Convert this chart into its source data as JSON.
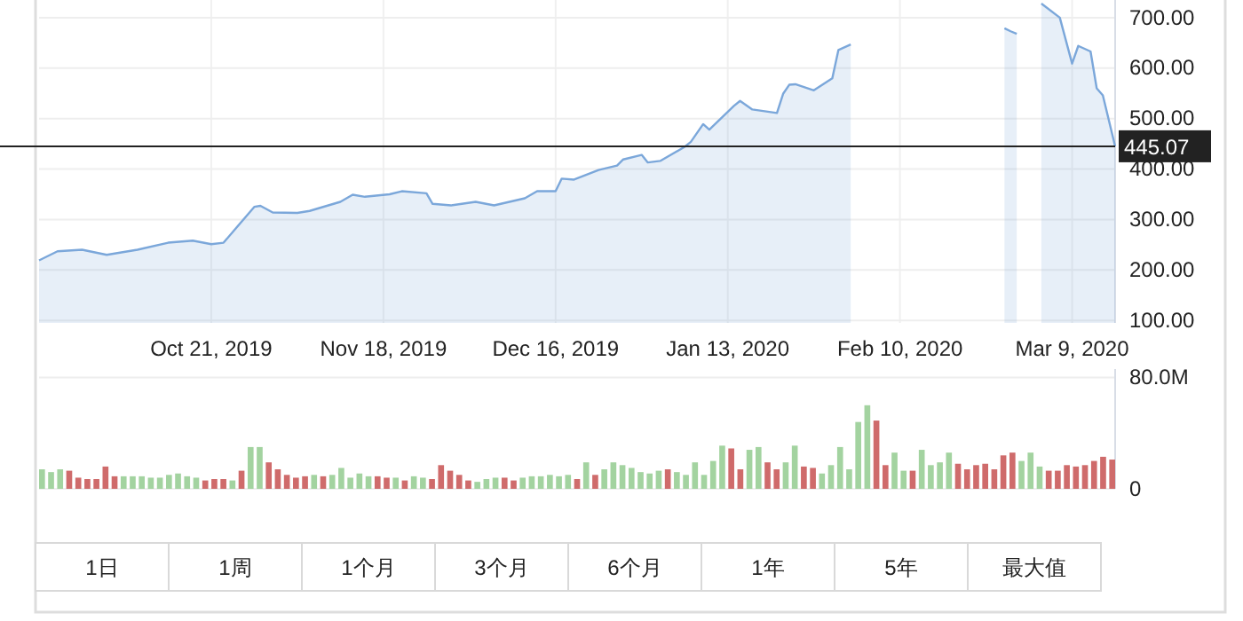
{
  "chart_data": [
    {
      "type": "area",
      "color": "#7ba7da",
      "x": [
        "2019-09-23",
        "2019-09-26",
        "2019-09-30",
        "2019-10-04",
        "2019-10-09",
        "2019-10-14",
        "2019-10-18",
        "2019-10-21",
        "2019-10-23",
        "2019-10-28",
        "2019-10-29",
        "2019-10-31",
        "2019-11-04",
        "2019-11-06",
        "2019-11-11",
        "2019-11-13",
        "2019-11-15",
        "2019-11-19",
        "2019-11-21",
        "2019-11-25",
        "2019-11-26",
        "2019-11-29",
        "2019-12-03",
        "2019-12-06",
        "2019-12-11",
        "2019-12-13",
        "2019-12-16",
        "2019-12-17",
        "2019-12-19",
        "2019-12-23",
        "2019-12-26",
        "2019-12-27",
        "2019-12-30",
        "2019-12-31",
        "2020-01-02",
        "2020-01-06",
        "2020-01-07",
        "2020-01-09",
        "2020-01-10",
        "2020-01-14",
        "2020-01-15",
        "2020-01-17",
        "2020-01-21",
        "2020-01-22",
        "2020-01-23",
        "2020-01-24",
        "2020-01-27",
        "2020-01-30",
        "2020-01-31",
        "2020-02-02",
        "2020-02-03",
        "2020-02-10",
        "2020-02-26",
        "2020-02-27",
        "2020-02-28",
        "2020-02-29",
        "2020-03-01",
        "2020-03-03",
        "2020-03-04",
        "2020-03-07",
        "2020-03-09",
        "2020-03-10",
        "2020-03-12",
        "2020-03-13",
        "2020-03-14",
        "2020-03-16"
      ],
      "values": [
        219,
        237,
        240,
        230,
        240,
        254,
        258,
        251,
        254,
        325,
        327,
        314,
        313,
        317,
        335,
        349,
        345,
        350,
        356,
        352,
        331,
        328,
        335,
        328,
        342,
        356,
        356,
        381,
        379,
        398,
        407,
        419,
        428,
        413,
        416,
        444,
        454,
        489,
        478,
        525,
        535,
        518,
        511,
        549,
        567,
        568,
        556,
        580,
        636,
        647,
        null,
        null,
        null,
        679,
        673,
        668,
        null,
        null,
        728,
        700,
        609,
        644,
        633,
        560,
        546,
        445
      ],
      "xlim": [
        "2019-09-23",
        "2020-03-16"
      ],
      "xticks": [
        {
          "value": "2019-10-21",
          "label": "Oct 21, 2019"
        },
        {
          "value": "2019-11-18",
          "label": "Nov 18, 2019"
        },
        {
          "value": "2019-12-16",
          "label": "Dec 16, 2019"
        },
        {
          "value": "2020-01-13",
          "label": "Jan 13, 2020"
        },
        {
          "value": "2020-02-10",
          "label": "Feb 10, 2020"
        },
        {
          "value": "2020-03-09",
          "label": "Mar 9, 2020"
        }
      ],
      "ylim": [
        95,
        735
      ],
      "yticks": [
        {
          "value": 100,
          "label": "100.00"
        },
        {
          "value": 200,
          "label": "200.00"
        },
        {
          "value": 300,
          "label": "300.00"
        },
        {
          "value": 400,
          "label": "400.00"
        },
        {
          "value": 500,
          "label": "500.00"
        },
        {
          "value": 600,
          "label": "600.00"
        },
        {
          "value": 700,
          "label": "700.00"
        }
      ],
      "ref_lines": [
        {
          "axis": "y",
          "value": 445.07,
          "label": "445.07",
          "color": "#222222"
        }
      ],
      "grid": true
    },
    {
      "type": "bar",
      "categories": [
        null,
        null,
        null,
        null,
        null,
        null,
        null,
        null,
        null,
        null,
        null,
        null,
        null,
        null,
        null,
        null,
        null,
        null,
        null,
        null,
        null,
        null,
        null,
        null,
        null,
        null,
        null,
        null,
        null,
        null,
        null,
        null,
        null,
        null,
        null,
        null,
        null,
        null,
        null,
        null,
        null,
        null,
        null,
        null,
        null,
        null,
        null,
        null,
        null,
        null,
        null,
        null,
        null,
        null,
        null,
        null,
        null,
        null,
        null,
        null,
        null,
        null,
        null,
        null,
        null,
        null,
        null,
        null,
        null,
        null,
        null,
        null,
        null,
        null,
        null,
        null,
        null,
        null,
        null,
        null,
        null,
        null,
        null,
        null,
        null,
        null,
        null,
        null,
        null,
        null,
        null,
        null,
        null,
        null,
        null,
        null,
        null,
        null,
        null,
        null,
        null,
        null,
        null,
        null,
        null,
        null,
        null,
        null,
        null,
        null,
        null,
        null,
        null,
        null,
        null,
        null,
        null,
        null,
        null
      ],
      "values": [
        14,
        12,
        14,
        13,
        8,
        7,
        7,
        16,
        9,
        9,
        9,
        9,
        8,
        8,
        10,
        11,
        9,
        8,
        6,
        7,
        7,
        6,
        13,
        30,
        30,
        19,
        14,
        10,
        8,
        9,
        10,
        9,
        10,
        15,
        8,
        11,
        9,
        9,
        8,
        8,
        6,
        9,
        8,
        7,
        17,
        13,
        10,
        6,
        5,
        7,
        8,
        8,
        6,
        8,
        9,
        9,
        10,
        9,
        10,
        7,
        19,
        10,
        14,
        19,
        17,
        15,
        12,
        11,
        13,
        14,
        12,
        10,
        19,
        10,
        20,
        31,
        29,
        14,
        28,
        30,
        19,
        14,
        19,
        31,
        16,
        15,
        11,
        17,
        30,
        14,
        48,
        60,
        49,
        17,
        26,
        13,
        13,
        28,
        17,
        19,
        26,
        18,
        14,
        17,
        18,
        14,
        24,
        26,
        20,
        26,
        16,
        13,
        13,
        17,
        16,
        17,
        20,
        23,
        21
      ],
      "colors": [
        "#a3d3a0",
        "#a3d3a0",
        "#a3d3a0",
        "#cf6b6b",
        "#cf6b6b",
        "#cf6b6b",
        "#cf6b6b",
        "#cf6b6b",
        "#cf6b6b",
        "#a3d3a0",
        "#a3d3a0",
        "#a3d3a0",
        "#a3d3a0",
        "#a3d3a0",
        "#a3d3a0",
        "#a3d3a0",
        "#a3d3a0",
        "#a3d3a0",
        "#cf6b6b",
        "#cf6b6b",
        "#cf6b6b",
        "#a3d3a0",
        "#cf6b6b",
        "#a3d3a0",
        "#a3d3a0",
        "#cf6b6b",
        "#cf6b6b",
        "#cf6b6b",
        "#cf6b6b",
        "#cf6b6b",
        "#a3d3a0",
        "#cf6b6b",
        "#a3d3a0",
        "#a3d3a0",
        "#a3d3a0",
        "#a3d3a0",
        "#a3d3a0",
        "#cf6b6b",
        "#cf6b6b",
        "#a3d3a0",
        "#cf6b6b",
        "#a3d3a0",
        "#a3d3a0",
        "#cf6b6b",
        "#cf6b6b",
        "#cf6b6b",
        "#cf6b6b",
        "#cf6b6b",
        "#a3d3a0",
        "#a3d3a0",
        "#a3d3a0",
        "#cf6b6b",
        "#cf6b6b",
        "#a3d3a0",
        "#a3d3a0",
        "#a3d3a0",
        "#a3d3a0",
        "#a3d3a0",
        "#a3d3a0",
        "#cf6b6b",
        "#a3d3a0",
        "#cf6b6b",
        "#a3d3a0",
        "#a3d3a0",
        "#a3d3a0",
        "#a3d3a0",
        "#a3d3a0",
        "#a3d3a0",
        "#a3d3a0",
        "#cf6b6b",
        "#a3d3a0",
        "#a3d3a0",
        "#a3d3a0",
        "#a3d3a0",
        "#a3d3a0",
        "#a3d3a0",
        "#cf6b6b",
        "#cf6b6b",
        "#a3d3a0",
        "#a3d3a0",
        "#cf6b6b",
        "#cf6b6b",
        "#a3d3a0",
        "#a3d3a0",
        "#cf6b6b",
        "#cf6b6b",
        "#a3d3a0",
        "#a3d3a0",
        "#a3d3a0",
        "#a3d3a0",
        "#a3d3a0",
        "#a3d3a0",
        "#cf6b6b",
        "#cf6b6b",
        "#a3d3a0",
        "#a3d3a0",
        "#cf6b6b",
        "#a3d3a0",
        "#a3d3a0",
        "#a3d3a0",
        "#a3d3a0",
        "#cf6b6b",
        "#cf6b6b",
        "#cf6b6b",
        "#cf6b6b",
        "#cf6b6b",
        "#cf6b6b",
        "#cf6b6b",
        "#a3d3a0",
        "#a3d3a0",
        "#a3d3a0",
        "#cf6b6b",
        "#cf6b6b",
        "#cf6b6b",
        "#cf6b6b",
        "#cf6b6b",
        "#cf6b6b",
        "#cf6b6b",
        "#cf6b6b"
      ],
      "ylim": [
        0,
        86
      ],
      "yticks": [
        {
          "value": 0,
          "label": "0"
        },
        {
          "value": 80,
          "label": "80.0M"
        }
      ],
      "tick_labels": "y",
      "grid": "y"
    },
    {
      "type": "other",
      "annotations": [
        "1日",
        "1周",
        "1个月",
        "3个月",
        "6个月",
        "1年",
        "5年",
        "最大值"
      ]
    }
  ]
}
